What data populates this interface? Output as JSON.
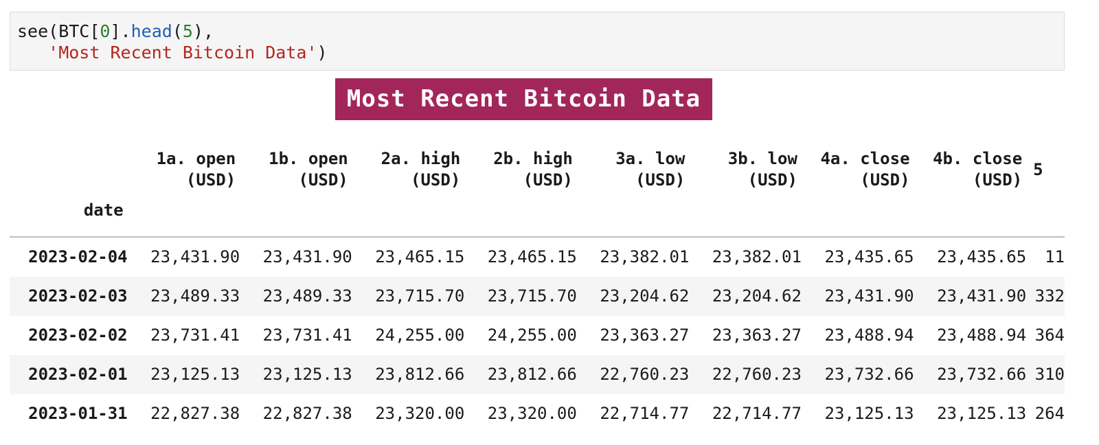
{
  "code": {
    "line1": {
      "fn_prefix": "see(BTC[",
      "index": "0",
      "bracket_dot": "].",
      "method": "head",
      "open_paren": "(",
      "arg": "5",
      "close": "),"
    },
    "line2": {
      "indent": "   ",
      "string": "'Most Recent Bitcoin Data'",
      "close": ")"
    }
  },
  "banner": {
    "title": "Most Recent Bitcoin Data"
  },
  "table": {
    "index_name": "date",
    "columns": [
      {
        "line1": "1a. open",
        "line2": "(USD)"
      },
      {
        "line1": "1b. open",
        "line2": "(USD)"
      },
      {
        "line1": "2a. high",
        "line2": "(USD)"
      },
      {
        "line1": "2b. high",
        "line2": "(USD)"
      },
      {
        "line1": "3a. low",
        "line2": "(USD)"
      },
      {
        "line1": "3b. low",
        "line2": "(USD)"
      },
      {
        "line1": "4a. close",
        "line2": "(USD)"
      },
      {
        "line1": "4b. close",
        "line2": "(USD)"
      },
      {
        "line1": "5",
        "line2": ""
      }
    ],
    "rows": [
      {
        "date": "2023-02-04",
        "values": [
          "23,431.90",
          "23,431.90",
          "23,465.15",
          "23,465.15",
          "23,382.01",
          "23,382.01",
          "23,435.65",
          "23,435.65",
          "11"
        ]
      },
      {
        "date": "2023-02-03",
        "values": [
          "23,489.33",
          "23,489.33",
          "23,715.70",
          "23,715.70",
          "23,204.62",
          "23,204.62",
          "23,431.90",
          "23,431.90",
          "332"
        ]
      },
      {
        "date": "2023-02-02",
        "values": [
          "23,731.41",
          "23,731.41",
          "24,255.00",
          "24,255.00",
          "23,363.27",
          "23,363.27",
          "23,488.94",
          "23,488.94",
          "364"
        ]
      },
      {
        "date": "2023-02-01",
        "values": [
          "23,125.13",
          "23,125.13",
          "23,812.66",
          "23,812.66",
          "22,760.23",
          "22,760.23",
          "23,732.66",
          "23,732.66",
          "310"
        ]
      },
      {
        "date": "2023-01-31",
        "values": [
          "22,827.38",
          "22,827.38",
          "23,320.00",
          "23,320.00",
          "22,714.77",
          "22,714.77",
          "23,125.13",
          "23,125.13",
          "264"
        ]
      }
    ]
  },
  "colors": {
    "banner_bg": "#a3265a",
    "function_name": "#1f5fb3",
    "number_literal": "#2e7d32",
    "string_literal": "#b3261e",
    "code_cell_bg": "#f5f5f5",
    "row_stripe": "#f5f5f5"
  }
}
